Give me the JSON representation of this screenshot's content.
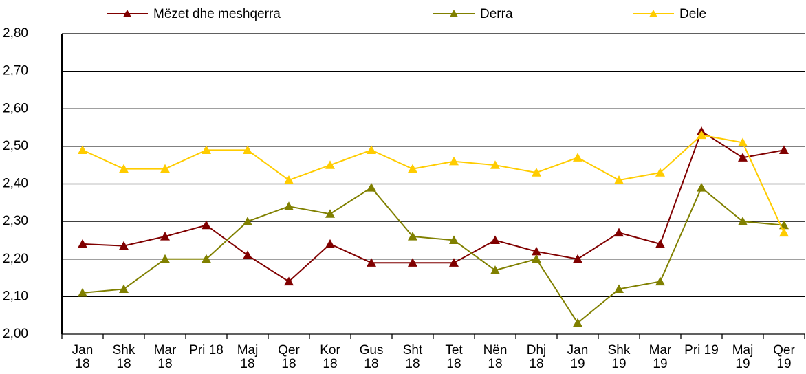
{
  "chart_data": {
    "type": "line",
    "categories": [
      "Jan 18",
      "Shk 18",
      "Mar 18",
      "Pri 18",
      "Maj 18",
      "Qer 18",
      "Kor 18",
      "Gus 18",
      "Sht 18",
      "Tet 18",
      "Nën 18",
      "Dhj 18",
      "Jan 19",
      "Shk 19",
      "Mar 19",
      "Pri 19",
      "Maj 19",
      "Qer 19"
    ],
    "series": [
      {
        "name": "Mëzet dhe meshqerra",
        "color": "#800000",
        "values": [
          2.24,
          2.235,
          2.26,
          2.29,
          2.21,
          2.14,
          2.24,
          2.19,
          2.19,
          2.19,
          2.25,
          2.22,
          2.2,
          2.27,
          2.24,
          2.54,
          2.47,
          2.49
        ]
      },
      {
        "name": "Derra",
        "color": "#808000",
        "values": [
          2.11,
          2.12,
          2.2,
          2.2,
          2.3,
          2.34,
          2.32,
          2.39,
          2.26,
          2.25,
          2.17,
          2.2,
          2.03,
          2.12,
          2.14,
          2.39,
          2.3,
          2.29
        ]
      },
      {
        "name": "Dele",
        "color": "#ffcc00",
        "values": [
          2.49,
          2.44,
          2.44,
          2.49,
          2.49,
          2.41,
          2.45,
          2.49,
          2.44,
          2.46,
          2.45,
          2.43,
          2.47,
          2.41,
          2.43,
          2.53,
          2.51,
          2.27
        ]
      }
    ],
    "ylim": [
      2.0,
      2.8
    ],
    "yticks": [
      {
        "value": 2.0,
        "label": "2,00"
      },
      {
        "value": 2.1,
        "label": "2,10"
      },
      {
        "value": 2.2,
        "label": "2,20"
      },
      {
        "value": 2.3,
        "label": "2,30"
      },
      {
        "value": 2.4,
        "label": "2,40"
      },
      {
        "value": 2.5,
        "label": "2,50"
      },
      {
        "value": 2.6,
        "label": "2,60"
      },
      {
        "value": 2.7,
        "label": "2,70"
      },
      {
        "value": 2.8,
        "label": "2,80"
      }
    ],
    "grid": true,
    "legend": "top"
  }
}
